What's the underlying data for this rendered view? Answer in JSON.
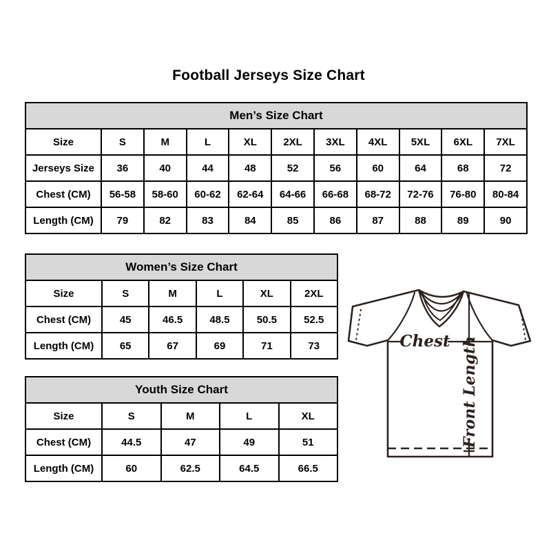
{
  "title": "Football Jerseys Size Chart",
  "colors": {
    "table_header_bg": "#d8d8d8",
    "table_border": "#000000",
    "diagram_line": "#2b211e"
  },
  "tables": {
    "men": {
      "header": "Men’s Size Chart",
      "rows": [
        {
          "label": "Size",
          "values": [
            "S",
            "M",
            "L",
            "XL",
            "2XL",
            "3XL",
            "4XL",
            "5XL",
            "6XL",
            "7XL"
          ]
        },
        {
          "label": "Jerseys Size",
          "values": [
            "36",
            "40",
            "44",
            "48",
            "52",
            "56",
            "60",
            "64",
            "68",
            "72"
          ]
        },
        {
          "label": "Chest (CM)",
          "values": [
            "56-58",
            "58-60",
            "60-62",
            "62-64",
            "64-66",
            "66-68",
            "68-72",
            "72-76",
            "76-80",
            "80-84"
          ]
        },
        {
          "label": "Length (CM)",
          "values": [
            "79",
            "82",
            "83",
            "84",
            "85",
            "86",
            "87",
            "88",
            "89",
            "90"
          ]
        }
      ]
    },
    "women": {
      "header": "Women’s Size Chart",
      "rows": [
        {
          "label": "Size",
          "values": [
            "S",
            "M",
            "L",
            "XL",
            "2XL"
          ]
        },
        {
          "label": "Chest (CM)",
          "values": [
            "45",
            "46.5",
            "48.5",
            "50.5",
            "52.5"
          ]
        },
        {
          "label": "Length (CM)",
          "values": [
            "65",
            "67",
            "69",
            "71",
            "73"
          ]
        }
      ]
    },
    "youth": {
      "header": "Youth Size Chart",
      "rows": [
        {
          "label": "Size",
          "values": [
            "S",
            "M",
            "L",
            "XL"
          ]
        },
        {
          "label": "Chest (CM)",
          "values": [
            "44.5",
            "47",
            "49",
            "51"
          ]
        },
        {
          "label": "Length (CM)",
          "values": [
            "60",
            "62.5",
            "64.5",
            "66.5"
          ]
        }
      ]
    }
  },
  "diagram": {
    "chest_label": "Chest",
    "front_length_label": "Front Length"
  }
}
